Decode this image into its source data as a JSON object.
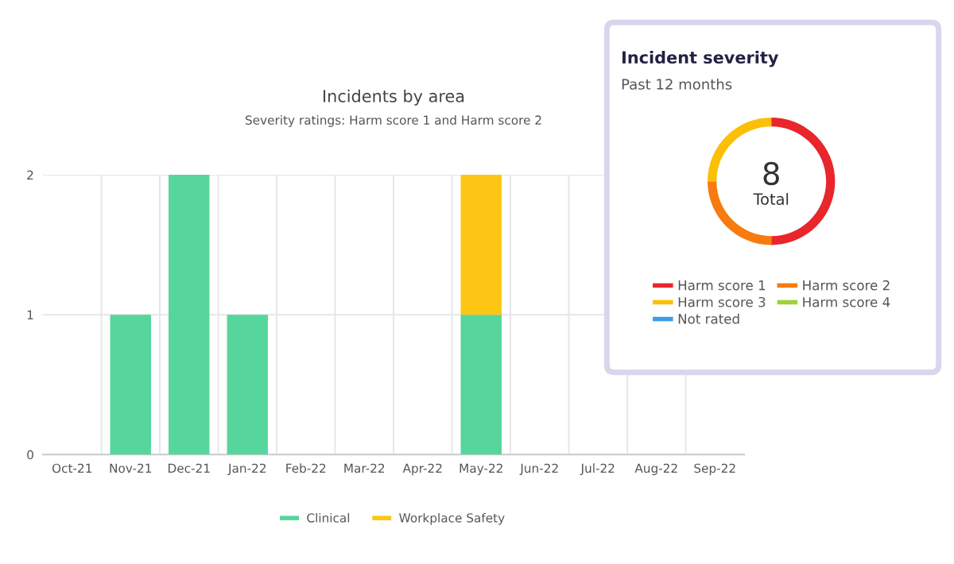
{
  "chart_data": [
    {
      "type": "bar",
      "title": "Incidents by area",
      "subtitle": "Severity ratings: Harm score 1 and Harm score 2",
      "categories": [
        "Oct-21",
        "Nov-21",
        "Dec-21",
        "Jan-22",
        "Feb-22",
        "Mar-22",
        "Apr-22",
        "May-22",
        "Jun-22",
        "Jul-22",
        "Aug-22",
        "Sep-22"
      ],
      "series": [
        {
          "name": "Clinical",
          "color": "#56d69d",
          "values": [
            0,
            1,
            2,
            1,
            0,
            0,
            0,
            1,
            0,
            0,
            0,
            0
          ]
        },
        {
          "name": "Workplace Safety",
          "color": "#fdc614",
          "values": [
            0,
            0,
            0,
            0,
            0,
            0,
            0,
            1,
            0,
            0,
            0,
            0
          ]
        }
      ],
      "stacked": true,
      "ylim": [
        0,
        2
      ],
      "yticks": [
        0,
        1,
        2
      ],
      "grid": true,
      "legend": "bottom"
    },
    {
      "type": "donut",
      "title": "Incident severity",
      "subtitle": "Past 12 months",
      "categories": [
        "Harm score 1",
        "Harm score 2",
        "Harm score 3",
        "Harm score 4",
        "Not rated"
      ],
      "values": [
        50,
        25,
        25,
        0,
        0
      ],
      "colors": [
        "#e8262b",
        "#f77b0f",
        "#fbbf08",
        "#9bd23c",
        "#3d9be9"
      ],
      "annotations": [
        "8",
        "Total"
      ],
      "legend": "bottom"
    }
  ]
}
